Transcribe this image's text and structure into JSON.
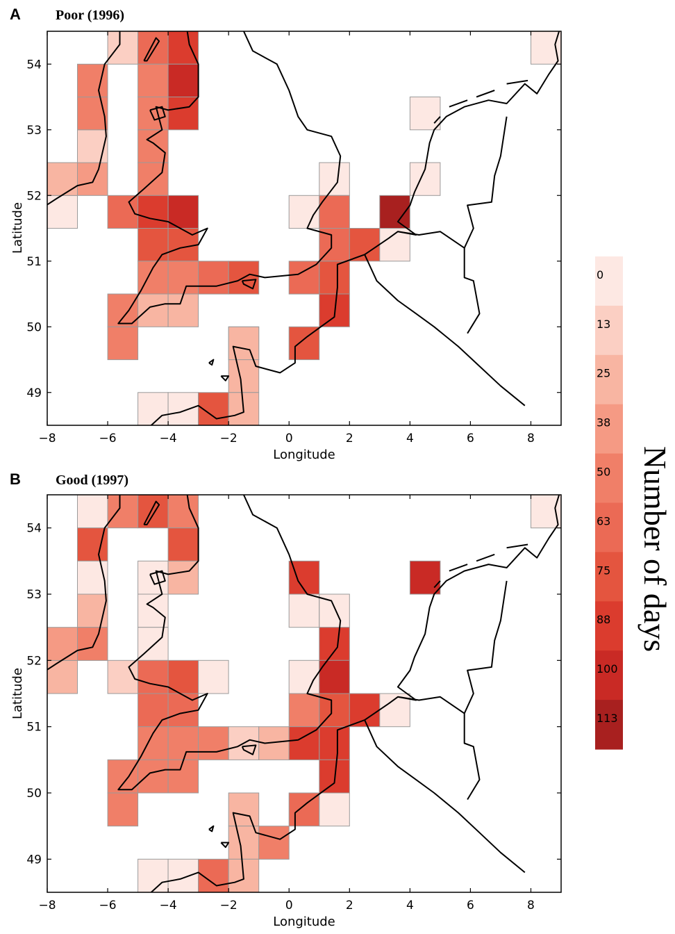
{
  "chart_data": [
    {
      "type": "heatmap",
      "panel_letter": "A",
      "title": "Poor (1996)",
      "xlabel": "Longitude",
      "ylabel": "Latitude",
      "xlim": [
        -8,
        9
      ],
      "ylim": [
        48.5,
        54.5
      ],
      "xticks": [
        -8,
        -6,
        -4,
        -2,
        0,
        2,
        4,
        6,
        8
      ],
      "xtick_labels": [
        "−8",
        "−6",
        "−4",
        "−2",
        "0",
        "2",
        "4",
        "6",
        "8"
      ],
      "yticks": [
        49,
        50,
        51,
        52,
        53,
        54
      ],
      "cell_size_degrees": [
        1,
        0.5
      ],
      "cells": [
        {
          "lon": -8,
          "lat": 51.5,
          "days": 5
        },
        {
          "lon": -8,
          "lat": 52.0,
          "days": 28
        },
        {
          "lon": -7,
          "lat": 52.0,
          "days": 45
        },
        {
          "lon": -7,
          "lat": 52.5,
          "days": 20
        },
        {
          "lon": -7,
          "lat": 53.0,
          "days": 55
        },
        {
          "lon": -7,
          "lat": 53.5,
          "days": 55
        },
        {
          "lon": -6,
          "lat": 54.0,
          "days": 18
        },
        {
          "lon": -6,
          "lat": 51.5,
          "days": 65
        },
        {
          "lon": -6,
          "lat": 50.0,
          "days": 55
        },
        {
          "lon": -6,
          "lat": 49.5,
          "days": 55
        },
        {
          "lon": -5,
          "lat": 54.0,
          "days": 65
        },
        {
          "lon": -5,
          "lat": 53.5,
          "days": 60
        },
        {
          "lon": -5,
          "lat": 53.0,
          "days": 55
        },
        {
          "lon": -5,
          "lat": 52.5,
          "days": 55
        },
        {
          "lon": -5,
          "lat": 52.0,
          "days": 55
        },
        {
          "lon": -5,
          "lat": 51.5,
          "days": 90
        },
        {
          "lon": -5,
          "lat": 51.0,
          "days": 75
        },
        {
          "lon": -5,
          "lat": 50.5,
          "days": 55
        },
        {
          "lon": -5,
          "lat": 50.0,
          "days": 25
        },
        {
          "lon": -5,
          "lat": 48.5,
          "days": 5
        },
        {
          "lon": -4,
          "lat": 54.0,
          "days": 90
        },
        {
          "lon": -4,
          "lat": 53.5,
          "days": 100
        },
        {
          "lon": -4,
          "lat": 53.0,
          "days": 90
        },
        {
          "lon": -4,
          "lat": 51.5,
          "days": 100
        },
        {
          "lon": -4,
          "lat": 51.0,
          "days": 80
        },
        {
          "lon": -4,
          "lat": 50.5,
          "days": 60
        },
        {
          "lon": -4,
          "lat": 50.0,
          "days": 25
        },
        {
          "lon": -4,
          "lat": 48.5,
          "days": 10
        },
        {
          "lon": -3,
          "lat": 50.5,
          "days": 65
        },
        {
          "lon": -3,
          "lat": 48.5,
          "days": 85
        },
        {
          "lon": -2,
          "lat": 50.5,
          "days": 75
        },
        {
          "lon": -2,
          "lat": 49.5,
          "days": 30
        },
        {
          "lon": -2,
          "lat": 49.0,
          "days": 30
        },
        {
          "lon": -2,
          "lat": 48.5,
          "days": 30
        },
        {
          "lon": -2,
          "lat": 49.5,
          "days": 30
        },
        {
          "lon": 0,
          "lat": 51.5,
          "days": 5
        },
        {
          "lon": 0,
          "lat": 50.5,
          "days": 65
        },
        {
          "lon": 0,
          "lat": 49.5,
          "days": 75
        },
        {
          "lon": 1,
          "lat": 52.0,
          "days": 10
        },
        {
          "lon": 1,
          "lat": 51.5,
          "days": 70
        },
        {
          "lon": 1,
          "lat": 51.0,
          "days": 70
        },
        {
          "lon": 1,
          "lat": 50.5,
          "days": 75
        },
        {
          "lon": 1,
          "lat": 50.0,
          "days": 90
        },
        {
          "lon": 2,
          "lat": 51.0,
          "days": 75
        },
        {
          "lon": 3,
          "lat": 51.5,
          "days": 120
        },
        {
          "lon": 3,
          "lat": 51.0,
          "days": 8
        },
        {
          "lon": 4,
          "lat": 53.0,
          "days": 8
        },
        {
          "lon": 4,
          "lat": 52.0,
          "days": 8
        },
        {
          "lon": 8,
          "lat": 54.0,
          "days": 5
        }
      ]
    },
    {
      "type": "heatmap",
      "panel_letter": "B",
      "title": "Good (1997)",
      "xlabel": "Longitude",
      "ylabel": "Latitude",
      "xlim": [
        -8,
        9
      ],
      "ylim": [
        48.5,
        54.5
      ],
      "xticks": [
        -8,
        -6,
        -4,
        -2,
        0,
        2,
        4,
        6,
        8
      ],
      "xtick_labels": [
        "−8",
        "−6",
        "−4",
        "−2",
        "0",
        "2",
        "4",
        "6",
        "8"
      ],
      "yticks": [
        49,
        50,
        51,
        52,
        53,
        54
      ],
      "cell_size_degrees": [
        1,
        0.5
      ],
      "cells": [
        {
          "lon": -8,
          "lat": 51.5,
          "days": 25
        },
        {
          "lon": -8,
          "lat": 52.0,
          "days": 45
        },
        {
          "lon": -7,
          "lat": 54.0,
          "days": 10
        },
        {
          "lon": -7,
          "lat": 53.5,
          "days": 75
        },
        {
          "lon": -7,
          "lat": 53.0,
          "days": 5
        },
        {
          "lon": -7,
          "lat": 52.5,
          "days": 30
        },
        {
          "lon": -7,
          "lat": 52.0,
          "days": 55
        },
        {
          "lon": -6,
          "lat": 54.0,
          "days": 55
        },
        {
          "lon": -6,
          "lat": 51.5,
          "days": 20
        },
        {
          "lon": -6,
          "lat": 50.0,
          "days": 55
        },
        {
          "lon": -6,
          "lat": 49.5,
          "days": 55
        },
        {
          "lon": -5,
          "lat": 54.0,
          "days": 85
        },
        {
          "lon": -5,
          "lat": 53.0,
          "days": 5
        },
        {
          "lon": -5,
          "lat": 52.5,
          "days": 5
        },
        {
          "lon": -5,
          "lat": 52.0,
          "days": 10
        },
        {
          "lon": -5,
          "lat": 51.5,
          "days": 65
        },
        {
          "lon": -5,
          "lat": 51.0,
          "days": 70
        },
        {
          "lon": -5,
          "lat": 50.5,
          "days": 55
        },
        {
          "lon": -5,
          "lat": 50.0,
          "days": 60
        },
        {
          "lon": -5,
          "lat": 48.5,
          "days": 5
        },
        {
          "lon": -4,
          "lat": 54.0,
          "days": 60
        },
        {
          "lon": -4,
          "lat": 53.5,
          "days": 75
        },
        {
          "lon": -4,
          "lat": 53.0,
          "days": 35
        },
        {
          "lon": -4,
          "lat": 51.5,
          "days": 85
        },
        {
          "lon": -4,
          "lat": 51.0,
          "days": 70
        },
        {
          "lon": -4,
          "lat": 50.5,
          "days": 60
        },
        {
          "lon": -4,
          "lat": 50.0,
          "days": 60
        },
        {
          "lon": -4,
          "lat": 48.5,
          "days": 8
        },
        {
          "lon": -3,
          "lat": 51.5,
          "days": 10
        },
        {
          "lon": -3,
          "lat": 50.5,
          "days": 50
        },
        {
          "lon": -3,
          "lat": 48.5,
          "days": 70
        },
        {
          "lon": -2,
          "lat": 50.5,
          "days": 15
        },
        {
          "lon": -2,
          "lat": 49.5,
          "days": 30
        },
        {
          "lon": -2,
          "lat": 49.0,
          "days": 30
        },
        {
          "lon": -2,
          "lat": 48.5,
          "days": 30
        },
        {
          "lon": -1,
          "lat": 50.5,
          "days": 30
        },
        {
          "lon": -1,
          "lat": 49.0,
          "days": 55
        },
        {
          "lon": 0,
          "lat": 53.0,
          "days": 90
        },
        {
          "lon": 0,
          "lat": 52.5,
          "days": 8
        },
        {
          "lon": 0,
          "lat": 51.5,
          "days": 10
        },
        {
          "lon": 0,
          "lat": 51.0,
          "days": 55
        },
        {
          "lon": 0,
          "lat": 50.5,
          "days": 95
        },
        {
          "lon": 0,
          "lat": 49.5,
          "days": 70
        },
        {
          "lon": 1,
          "lat": 52.5,
          "days": 8
        },
        {
          "lon": 1,
          "lat": 52.0,
          "days": 90
        },
        {
          "lon": 1,
          "lat": 51.5,
          "days": 100
        },
        {
          "lon": 1,
          "lat": 51.0,
          "days": 85
        },
        {
          "lon": 1,
          "lat": 50.5,
          "days": 95
        },
        {
          "lon": 1,
          "lat": 50.0,
          "days": 95
        },
        {
          "lon": 1,
          "lat": 49.5,
          "days": 10
        },
        {
          "lon": 2,
          "lat": 51.0,
          "days": 90
        },
        {
          "lon": 3,
          "lat": 51.0,
          "days": 10
        },
        {
          "lon": 4,
          "lat": 53.0,
          "days": 110
        },
        {
          "lon": 8,
          "lat": 54.0,
          "days": 5
        }
      ]
    }
  ],
  "colorbar": {
    "title": "Number of days",
    "tick_labels": [
      "0",
      "13",
      "25",
      "38",
      "50",
      "63",
      "75",
      "88",
      "100",
      "113"
    ],
    "boundaries": [
      0,
      13,
      25,
      38,
      50,
      63,
      75,
      88,
      100,
      113,
      126
    ],
    "colors": [
      "#fde8e3",
      "#fbcfc3",
      "#f8b5a2",
      "#f59a84",
      "#f07f68",
      "#eb6a55",
      "#e4553f",
      "#db3c2e",
      "#c92a25",
      "#a8201f"
    ]
  }
}
